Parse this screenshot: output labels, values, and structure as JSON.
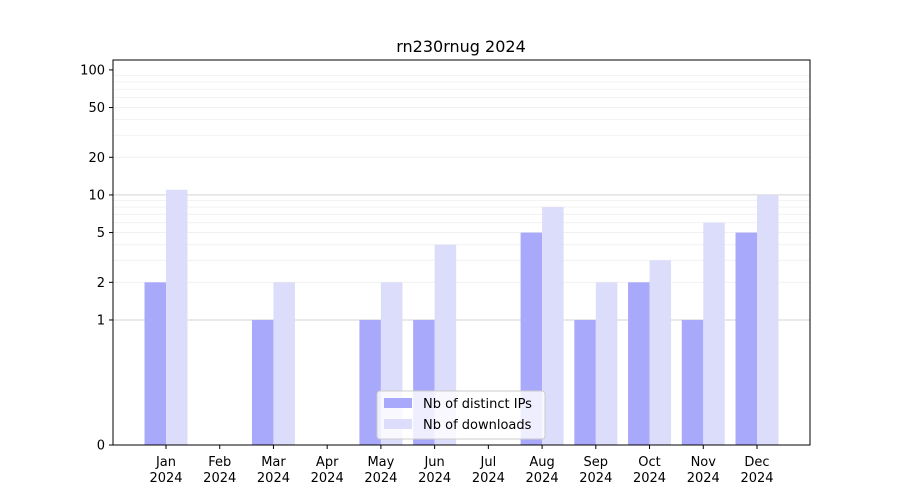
{
  "chart_data": {
    "type": "bar",
    "title": "rn230rnug 2024",
    "xlabel": "",
    "ylabel": "",
    "yscale": "symlog",
    "ylim": [
      0,
      120
    ],
    "yticks": [
      0,
      1,
      2,
      5,
      10,
      20,
      50,
      100
    ],
    "ytick_labels": [
      "0",
      "1",
      "2",
      "5",
      "10",
      "20",
      "50",
      "100"
    ],
    "categories": [
      "Jan",
      "Feb",
      "Mar",
      "Apr",
      "May",
      "Jun",
      "Jul",
      "Aug",
      "Sep",
      "Oct",
      "Nov",
      "Dec"
    ],
    "category_year": "2024",
    "series": [
      {
        "name": "Nb of distinct IPs",
        "color": "#a9a9fb",
        "values": [
          2,
          0,
          1,
          0,
          1,
          1,
          0,
          5,
          1,
          2,
          1,
          5
        ]
      },
      {
        "name": "Nb of downloads",
        "color": "#dcdcfb",
        "values": [
          11,
          0,
          2,
          0,
          2,
          4,
          0,
          8,
          2,
          3,
          6,
          10
        ]
      }
    ],
    "legend": "lower-center",
    "grid": true
  }
}
